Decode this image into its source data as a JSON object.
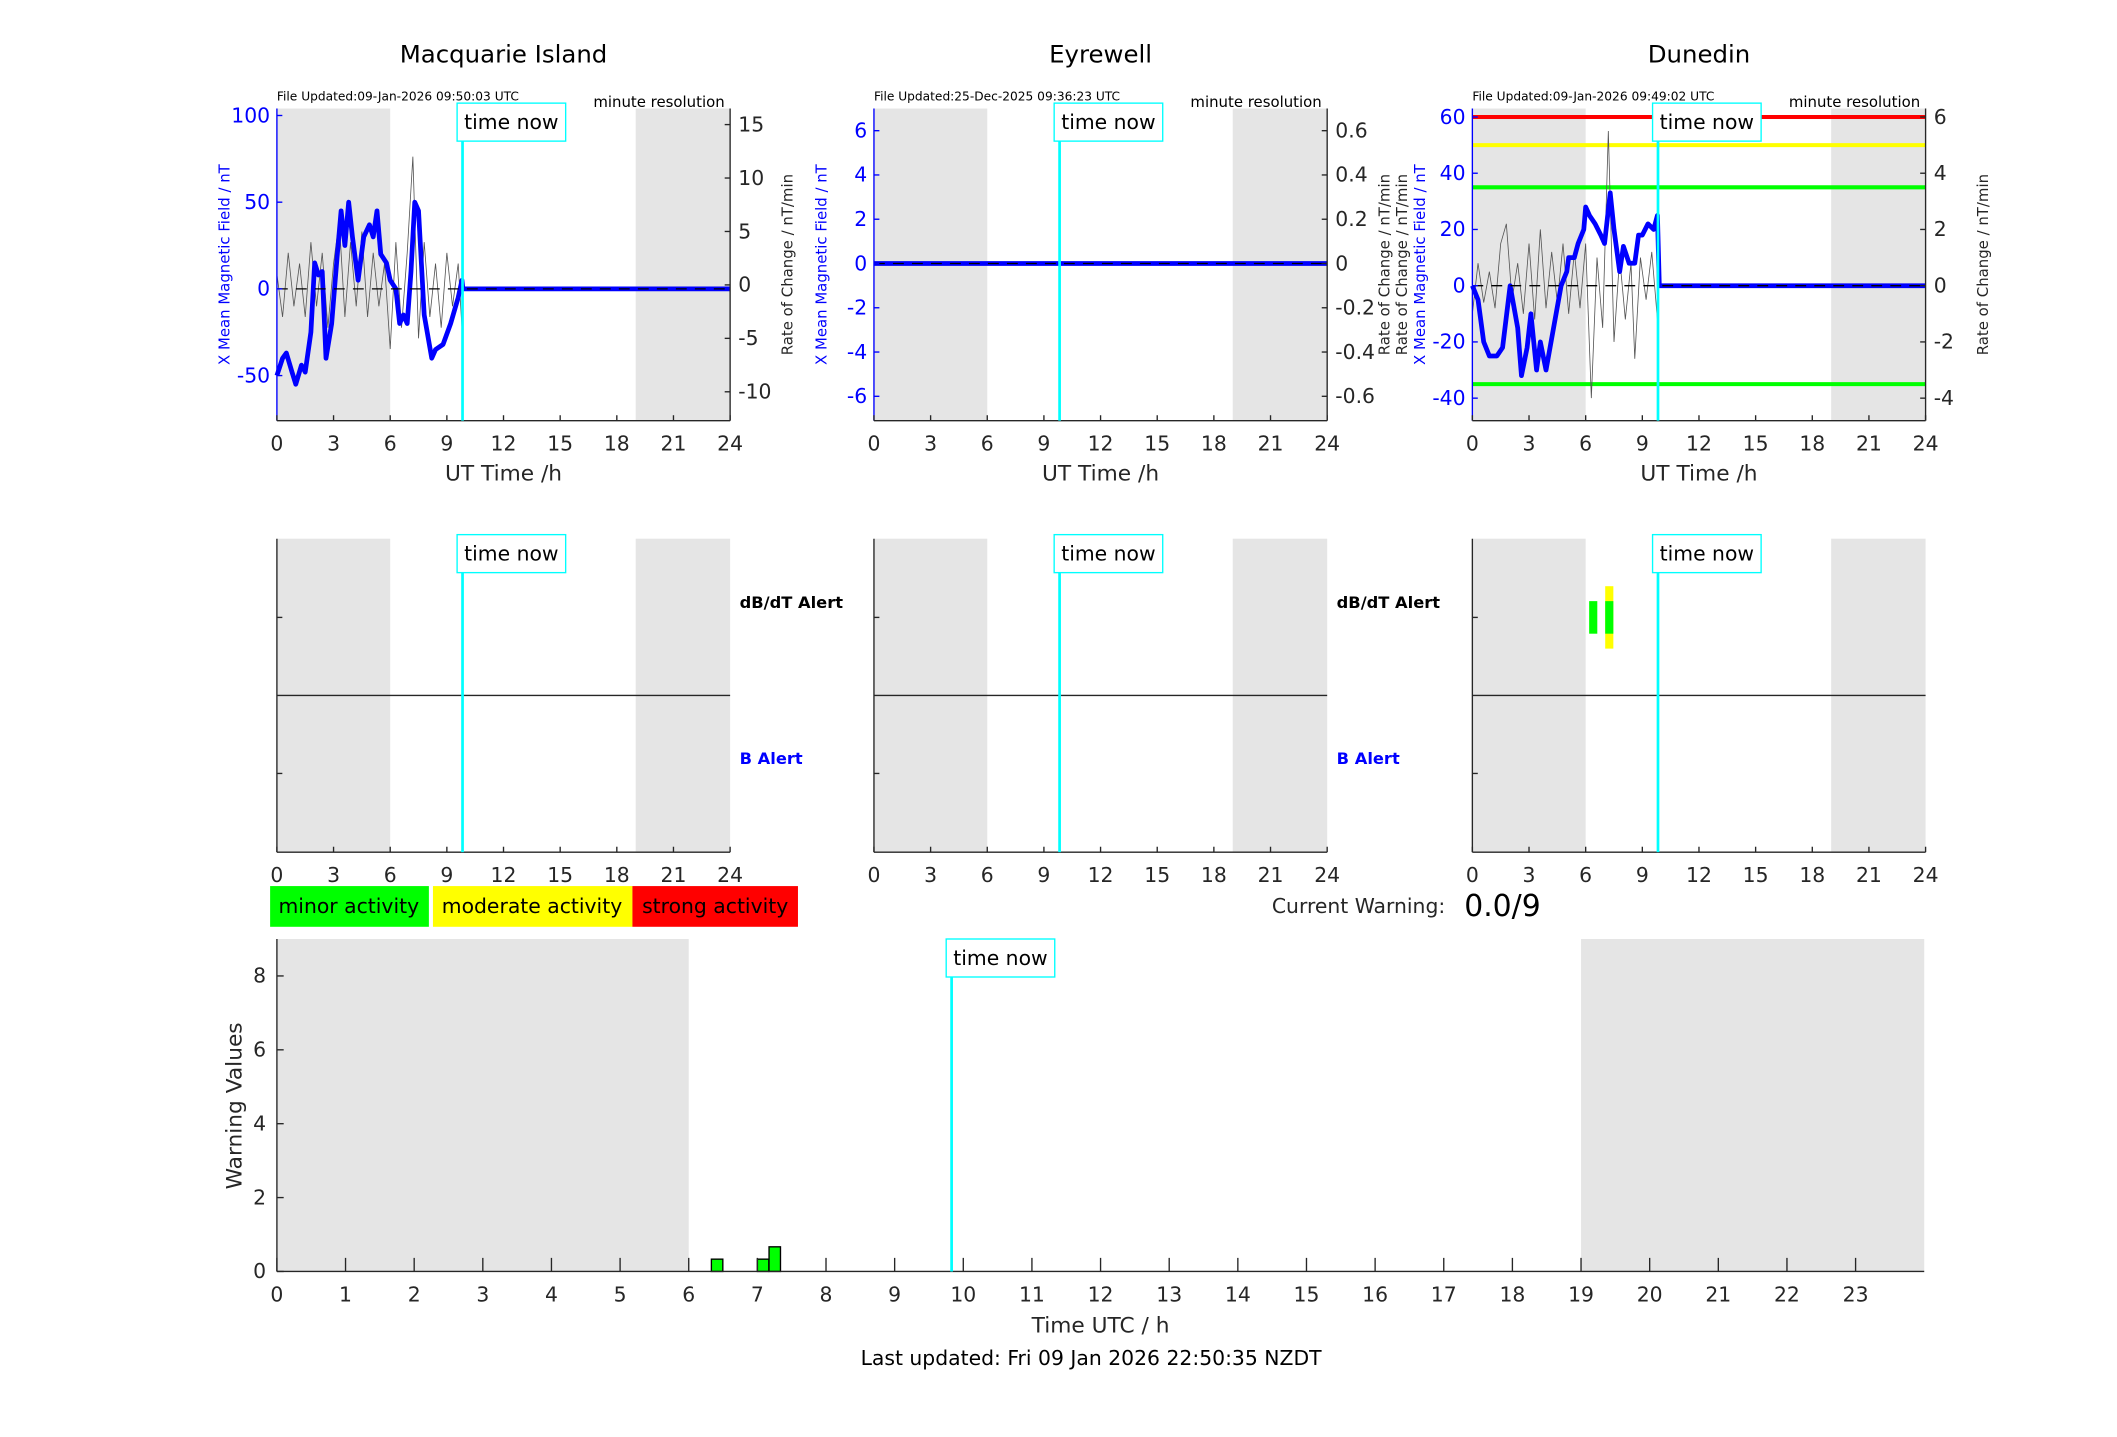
{
  "colors": {
    "shade": "#e5e5e5",
    "field": "#0000ff",
    "now": "#00ffff",
    "minor": "#00ff00",
    "moderate": "#ffff00",
    "strong": "#ff0000",
    "roc": "#555555"
  },
  "time_now_label": "time now",
  "time_now_h": 9.83,
  "legend": {
    "minor": "minor activity",
    "moderate": "moderate activity",
    "strong": "strong activity"
  },
  "current_warning": {
    "label": "Current Warning:",
    "value": "0.0/9"
  },
  "alert_labels": {
    "dbdt": "dB/dT Alert",
    "b": "B Alert"
  },
  "last_updated": "Last updated: Fri 09 Jan 2026 22:50:35 NZDT",
  "chart_data": [
    {
      "type": "line",
      "title": "Macquarie Island",
      "file_updated": "File Updated:09-Jan-2026 09:50:03 UTC",
      "resolution": "minute resolution",
      "xlabel": "UT Time /h",
      "ylabel": "X Mean Magnetic Field / nT",
      "y2label": "Rate of Change / nT/min",
      "xlim": [
        0,
        24
      ],
      "xticks": [
        0,
        3,
        6,
        9,
        12,
        15,
        18,
        21,
        24
      ],
      "ylim": [
        -76,
        104
      ],
      "yticks": [
        -50,
        0,
        50,
        100
      ],
      "y2lim": [
        -12.7,
        16.5
      ],
      "y2ticks": [
        -10,
        -5,
        0,
        5,
        10,
        15
      ],
      "shade": [
        [
          0,
          6
        ],
        [
          19,
          24
        ]
      ],
      "field": [
        [
          0,
          -50
        ],
        [
          0.3,
          -40
        ],
        [
          0.5,
          -37
        ],
        [
          0.8,
          -48
        ],
        [
          1.0,
          -55
        ],
        [
          1.3,
          -44
        ],
        [
          1.5,
          -48
        ],
        [
          1.8,
          -25
        ],
        [
          2.0,
          15
        ],
        [
          2.2,
          8
        ],
        [
          2.4,
          10
        ],
        [
          2.6,
          -40
        ],
        [
          2.9,
          -20
        ],
        [
          3.2,
          20
        ],
        [
          3.4,
          45
        ],
        [
          3.6,
          25
        ],
        [
          3.8,
          50
        ],
        [
          4.0,
          30
        ],
        [
          4.3,
          5
        ],
        [
          4.6,
          30
        ],
        [
          4.9,
          37
        ],
        [
          5.1,
          30
        ],
        [
          5.3,
          45
        ],
        [
          5.5,
          20
        ],
        [
          5.8,
          15
        ],
        [
          6.0,
          5
        ],
        [
          6.3,
          0
        ],
        [
          6.5,
          -20
        ],
        [
          6.7,
          -15
        ],
        [
          6.9,
          -20
        ],
        [
          7.1,
          10
        ],
        [
          7.3,
          50
        ],
        [
          7.5,
          45
        ],
        [
          7.8,
          -15
        ],
        [
          8.2,
          -40
        ],
        [
          8.4,
          -35
        ],
        [
          8.8,
          -32
        ],
        [
          9.2,
          -20
        ],
        [
          9.6,
          -5
        ],
        [
          9.8,
          5
        ],
        [
          9.85,
          0
        ],
        [
          24,
          0
        ]
      ],
      "roc": [
        [
          0,
          1
        ],
        [
          0.3,
          -3
        ],
        [
          0.6,
          3
        ],
        [
          0.9,
          -2
        ],
        [
          1.2,
          2
        ],
        [
          1.5,
          -3
        ],
        [
          1.8,
          4
        ],
        [
          2.1,
          -2
        ],
        [
          2.4,
          3
        ],
        [
          2.7,
          -4
        ],
        [
          3.0,
          2
        ],
        [
          3.3,
          6
        ],
        [
          3.6,
          -3
        ],
        [
          3.9,
          4
        ],
        [
          4.2,
          -2
        ],
        [
          4.5,
          5
        ],
        [
          4.8,
          -3
        ],
        [
          5.1,
          3
        ],
        [
          5.4,
          -2
        ],
        [
          5.7,
          2
        ],
        [
          6.0,
          -6
        ],
        [
          6.3,
          4
        ],
        [
          6.6,
          -4
        ],
        [
          6.9,
          3
        ],
        [
          7.2,
          12
        ],
        [
          7.5,
          -5
        ],
        [
          7.8,
          4
        ],
        [
          8.1,
          -3
        ],
        [
          8.4,
          2
        ],
        [
          8.7,
          -4
        ],
        [
          9.0,
          3
        ],
        [
          9.3,
          -2
        ],
        [
          9.6,
          2
        ],
        [
          9.8,
          -4
        ],
        [
          9.85,
          0
        ]
      ],
      "alerts": []
    },
    {
      "type": "line",
      "title": "Eyrewell",
      "file_updated": "File Updated:25-Dec-2025 09:36:23 UTC",
      "resolution": "minute resolution",
      "xlabel": "UT Time /h",
      "ylabel": "X Mean Magnetic Field / nT",
      "y2label": "Rate of Change / nT/min",
      "xlim": [
        0,
        24
      ],
      "xticks": [
        0,
        3,
        6,
        9,
        12,
        15,
        18,
        21,
        24
      ],
      "ylim": [
        -7.1,
        7
      ],
      "yticks": [
        -6,
        -4,
        -2,
        0,
        2,
        4,
        6
      ],
      "y2lim": [
        -0.71,
        0.7
      ],
      "y2ticks": [
        -0.6,
        -0.4,
        -0.2,
        0,
        0.2,
        0.4,
        0.6
      ],
      "shade": [
        [
          0,
          6
        ],
        [
          19,
          24
        ]
      ],
      "field": [
        [
          0,
          0
        ],
        [
          24,
          0
        ]
      ],
      "roc": [],
      "alerts": []
    },
    {
      "type": "line",
      "title": "Dunedin",
      "file_updated": "File Updated:09-Jan-2026 09:49:02 UTC",
      "resolution": "minute resolution",
      "xlabel": "UT Time /h",
      "ylabel": "X Mean Magnetic Field / nT",
      "ylabel_extra": "Rate of Change / nT/min",
      "y2label": "Rate of Change / nT/min",
      "xlim": [
        0,
        24
      ],
      "xticks": [
        0,
        3,
        6,
        9,
        12,
        15,
        18,
        21,
        24
      ],
      "ylim": [
        -48,
        63
      ],
      "yticks": [
        -40,
        -20,
        0,
        20,
        40,
        60
      ],
      "y2lim": [
        -4.8,
        6.3
      ],
      "y2ticks": [
        -4,
        -2,
        0,
        2,
        4,
        6
      ],
      "shade": [
        [
          0,
          6
        ],
        [
          19,
          24
        ]
      ],
      "thresholds": [
        {
          "value": 60,
          "level": "strong"
        },
        {
          "value": 50,
          "level": "moderate"
        },
        {
          "value": 35,
          "level": "minor"
        },
        {
          "value": -35,
          "level": "minor"
        }
      ],
      "field": [
        [
          0,
          0
        ],
        [
          0.3,
          -5
        ],
        [
          0.6,
          -20
        ],
        [
          0.9,
          -25
        ],
        [
          1.3,
          -25
        ],
        [
          1.6,
          -22
        ],
        [
          2.0,
          0
        ],
        [
          2.4,
          -15
        ],
        [
          2.6,
          -32
        ],
        [
          2.9,
          -22
        ],
        [
          3.1,
          -10
        ],
        [
          3.4,
          -30
        ],
        [
          3.6,
          -20
        ],
        [
          3.9,
          -30
        ],
        [
          4.3,
          -15
        ],
        [
          4.7,
          0
        ],
        [
          5.0,
          5
        ],
        [
          5.1,
          10
        ],
        [
          5.4,
          10
        ],
        [
          5.6,
          15
        ],
        [
          5.9,
          20
        ],
        [
          6.0,
          28
        ],
        [
          6.2,
          25
        ],
        [
          6.5,
          22
        ],
        [
          6.8,
          18
        ],
        [
          7.0,
          15
        ],
        [
          7.3,
          33
        ],
        [
          7.5,
          20
        ],
        [
          7.8,
          5
        ],
        [
          8.0,
          14
        ],
        [
          8.3,
          8
        ],
        [
          8.6,
          8
        ],
        [
          8.8,
          18
        ],
        [
          9.0,
          18
        ],
        [
          9.3,
          22
        ],
        [
          9.6,
          20
        ],
        [
          9.8,
          25
        ],
        [
          9.9,
          0
        ],
        [
          24,
          0
        ]
      ],
      "roc": [
        [
          0,
          -1
        ],
        [
          0.3,
          0.8
        ],
        [
          0.6,
          -0.6
        ],
        [
          0.9,
          0.5
        ],
        [
          1.2,
          -0.8
        ],
        [
          1.5,
          1.5
        ],
        [
          1.8,
          2.2
        ],
        [
          2.1,
          -0.5
        ],
        [
          2.4,
          0.8
        ],
        [
          2.7,
          -1
        ],
        [
          3.0,
          1.5
        ],
        [
          3.3,
          -1.2
        ],
        [
          3.6,
          2
        ],
        [
          3.9,
          -0.8
        ],
        [
          4.2,
          1.2
        ],
        [
          4.5,
          -0.6
        ],
        [
          4.8,
          1.5
        ],
        [
          5.1,
          -1
        ],
        [
          5.4,
          1.2
        ],
        [
          5.7,
          -0.8
        ],
        [
          6.0,
          1.5
        ],
        [
          6.3,
          -4
        ],
        [
          6.6,
          1
        ],
        [
          6.9,
          -1.5
        ],
        [
          7.2,
          5.5
        ],
        [
          7.5,
          -2
        ],
        [
          7.8,
          1
        ],
        [
          8.1,
          -1.2
        ],
        [
          8.4,
          0.8
        ],
        [
          8.6,
          -2.6
        ],
        [
          8.9,
          1
        ],
        [
          9.2,
          -0.5
        ],
        [
          9.5,
          1.2
        ],
        [
          9.8,
          -1.2
        ],
        [
          9.85,
          0
        ]
      ],
      "alerts": [
        {
          "kind": "dbdt",
          "h": 7.25,
          "level": "moderate"
        },
        {
          "kind": "dbdt",
          "h": 6.4,
          "level": "minor"
        },
        {
          "kind": "dbdt",
          "h": 7.25,
          "level": "minor"
        }
      ]
    },
    {
      "type": "bar",
      "xlabel": "Time UTC / h",
      "ylabel": "Warning Values",
      "xlim": [
        0,
        24
      ],
      "xticks": [
        0,
        1,
        2,
        3,
        4,
        5,
        6,
        7,
        8,
        9,
        10,
        11,
        12,
        13,
        14,
        15,
        16,
        17,
        18,
        19,
        20,
        21,
        22,
        23
      ],
      "ylim": [
        0,
        9
      ],
      "yticks": [
        0,
        2,
        4,
        6,
        8
      ],
      "shade": [
        [
          0,
          6
        ],
        [
          19,
          24
        ]
      ],
      "bin_width_h": 0.1667,
      "bars": [
        {
          "h": 6.33,
          "value": 0.333
        },
        {
          "h": 7.0,
          "value": 0.333
        },
        {
          "h": 7.17,
          "value": 0.667
        }
      ]
    }
  ]
}
